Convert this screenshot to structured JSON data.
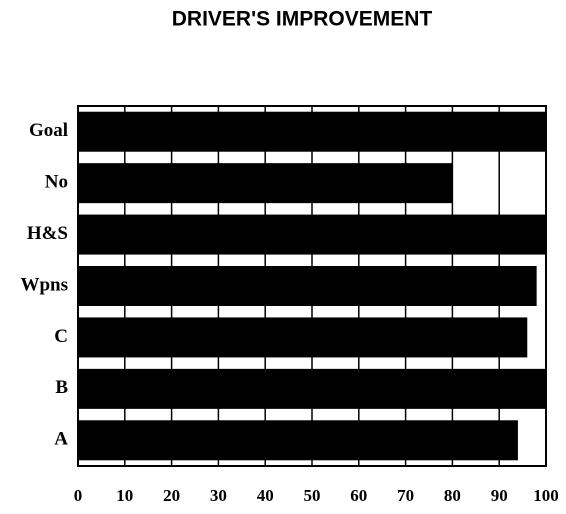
{
  "chart_data": {
    "type": "barh",
    "title": "DRIVER'S IMPROVEMENT",
    "categories": [
      "Goal",
      "No",
      "H&S",
      "Wpns",
      "C",
      "B",
      "A"
    ],
    "values": [
      100,
      80,
      100,
      98,
      96,
      100,
      94
    ],
    "color": "#000000",
    "xlim": [
      0,
      100
    ],
    "xticks": [
      0,
      10,
      20,
      30,
      40,
      50,
      60,
      70,
      80,
      90,
      100
    ],
    "grid": true
  }
}
